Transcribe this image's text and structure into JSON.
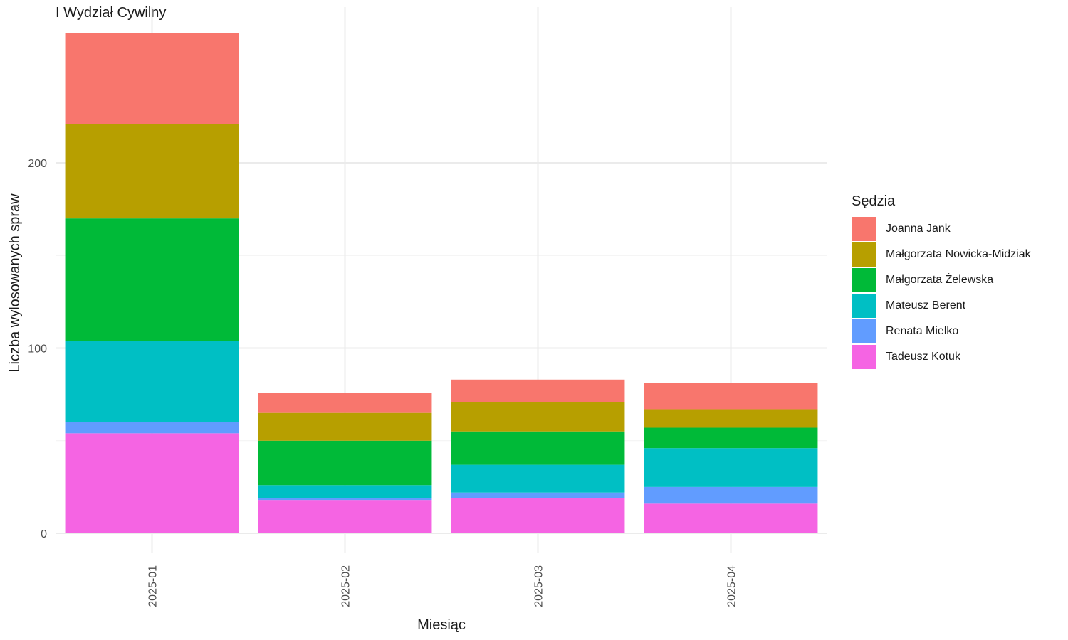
{
  "chart_data": {
    "type": "bar",
    "stacked": true,
    "title": "I Wydział Cywilny",
    "xlabel": "Miesiąc",
    "ylabel": "Liczba wylosowanych spraw",
    "categories": [
      "2025-01",
      "2025-02",
      "2025-03",
      "2025-04"
    ],
    "ylim": [
      0,
      285
    ],
    "yticks": [
      0,
      100,
      200
    ],
    "y_tick_labels": [
      "0",
      "100",
      "200"
    ],
    "grid": true,
    "legend_title": "Sędzia",
    "legend_position": "right",
    "series": [
      {
        "name": "Joanna Jank",
        "color": "#F8766D",
        "values": [
          49,
          11,
          12,
          14
        ]
      },
      {
        "name": "Małgorzata Nowicka-Midziak",
        "color": "#B79F00",
        "values": [
          51,
          15,
          16,
          10
        ]
      },
      {
        "name": "Małgorzata Żelewska",
        "color": "#00BA38",
        "values": [
          66,
          24,
          18,
          11
        ]
      },
      {
        "name": "Mateusz Berent",
        "color": "#00BFC4",
        "values": [
          44,
          7,
          15,
          21
        ]
      },
      {
        "name": "Renata Mielko",
        "color": "#619CFF",
        "values": [
          6,
          1,
          3,
          9
        ]
      },
      {
        "name": "Tadeusz Kotuk",
        "color": "#F564E3",
        "values": [
          54,
          18,
          19,
          16
        ]
      }
    ]
  }
}
